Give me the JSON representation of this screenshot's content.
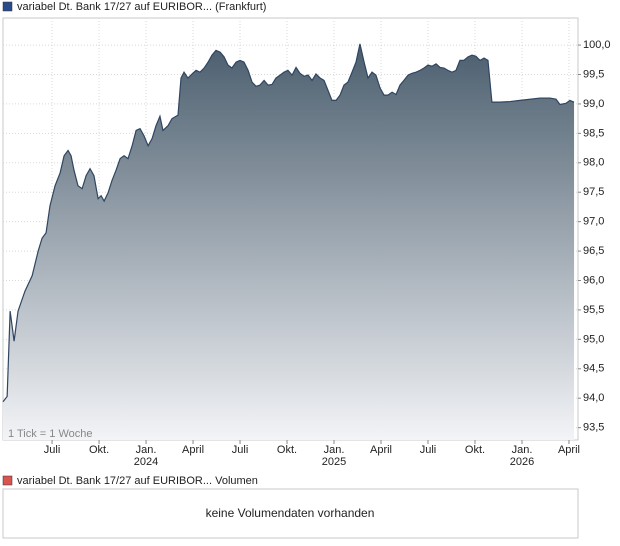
{
  "chart_data": {
    "type": "area",
    "annotation": "1 Tick = 1 Woche",
    "series": [
      {
        "name": "variabel Dt. Bank 17/27 auf EURIBOR... (Frankfurt)",
        "color": "#2b4a8a",
        "line_color": "#2f4560",
        "fill_top": "#4b5e6e",
        "fill_bottom": "#f3f4f7",
        "values": [
          93.94,
          94.03,
          95.48,
          94.97,
          95.48,
          95.82,
          96.08,
          96.5,
          96.72,
          96.81,
          97.27,
          97.61,
          97.83,
          98.12,
          98.21,
          98.12,
          97.87,
          97.61,
          97.56,
          97.78,
          97.9,
          97.78,
          97.39,
          97.44,
          97.35,
          97.49,
          97.7,
          97.87,
          98.07,
          98.12,
          98.07,
          98.29,
          98.55,
          98.58,
          98.46,
          98.29,
          98.41,
          98.63,
          98.79,
          98.55,
          98.63,
          98.75,
          98.81,
          99.44,
          99.54,
          99.44,
          99.51,
          99.57,
          99.54,
          99.61,
          99.71,
          99.83,
          99.91,
          99.88,
          99.8,
          99.66,
          99.61,
          99.71,
          99.74,
          99.71,
          99.57,
          99.37,
          99.3,
          99.32,
          99.4,
          99.32,
          99.33,
          99.44,
          99.49,
          99.54,
          99.57,
          99.49,
          99.62,
          99.52,
          99.47,
          99.49,
          99.4,
          99.51,
          99.44,
          99.4,
          99.23,
          99.06,
          99.06,
          99.15,
          99.32,
          99.37,
          99.54,
          99.71,
          100.02,
          99.71,
          99.44,
          99.54,
          99.49,
          99.27,
          99.15,
          99.15,
          99.2,
          99.16,
          99.32,
          99.4,
          99.49,
          99.52,
          99.54,
          99.57,
          99.61,
          99.66,
          99.64,
          99.68,
          99.62,
          99.61,
          99.57,
          99.54,
          99.57,
          99.74,
          99.74,
          99.8,
          99.83,
          99.81,
          99.74,
          99.78,
          99.74,
          99.03,
          99.03,
          99.03,
          99.04,
          99.06,
          99.08,
          99.1,
          99.1,
          99.08,
          98.99,
          99.01,
          99.06,
          99.03
        ]
      }
    ],
    "x": [
      2023.239,
      2023.261,
      2023.277,
      2023.298,
      2023.319,
      2023.356,
      2023.394,
      2023.426,
      2023.447,
      2023.468,
      2023.489,
      2023.516,
      2023.543,
      2023.564,
      2023.585,
      2023.601,
      2023.617,
      2023.638,
      2023.66,
      2023.681,
      2023.702,
      2023.723,
      2023.745,
      2023.761,
      2023.777,
      2023.798,
      2023.819,
      2023.84,
      2023.862,
      2023.883,
      2023.904,
      2023.926,
      2023.947,
      2023.968,
      2023.989,
      2024.011,
      2024.032,
      2024.053,
      2024.074,
      2024.09,
      2024.117,
      2024.138,
      2024.17,
      2024.186,
      2024.202,
      2024.223,
      2024.245,
      2024.266,
      2024.287,
      2024.309,
      2024.33,
      2024.351,
      2024.372,
      2024.394,
      2024.415,
      2024.436,
      2024.457,
      2024.479,
      2024.5,
      2024.521,
      2024.543,
      2024.564,
      2024.585,
      2024.606,
      2024.628,
      2024.649,
      2024.67,
      2024.691,
      2024.713,
      2024.734,
      2024.755,
      2024.777,
      2024.798,
      2024.819,
      2024.84,
      2024.862,
      2024.883,
      2024.904,
      2024.926,
      2024.947,
      2024.968,
      2024.989,
      2025.011,
      2025.032,
      2025.053,
      2025.074,
      2025.096,
      2025.117,
      2025.138,
      2025.16,
      2025.181,
      2025.202,
      2025.223,
      2025.245,
      2025.266,
      2025.287,
      2025.309,
      2025.33,
      2025.351,
      2025.372,
      2025.394,
      2025.415,
      2025.436,
      2025.457,
      2025.479,
      2025.5,
      2025.521,
      2025.543,
      2025.564,
      2025.585,
      2025.606,
      2025.628,
      2025.649,
      2025.67,
      2025.691,
      2025.713,
      2025.734,
      2025.755,
      2025.777,
      2025.798,
      2025.819,
      2025.84,
      2025.862,
      2025.883,
      2025.936,
      2025.989,
      2026.043,
      2026.096,
      2026.149,
      2026.181,
      2026.202,
      2026.234,
      2026.255,
      2026.277
    ],
    "xlim": [
      2023.239,
      2026.298
    ],
    "xticks": [
      {
        "value": 2023.5,
        "label": "Juli"
      },
      {
        "value": 2023.75,
        "label": "Okt."
      },
      {
        "value": 2024.0,
        "label": "Jan.",
        "year": "2024"
      },
      {
        "value": 2024.25,
        "label": "April"
      },
      {
        "value": 2024.5,
        "label": "Juli"
      },
      {
        "value": 2024.75,
        "label": "Okt."
      },
      {
        "value": 2025.0,
        "label": "Jan.",
        "year": "2025"
      },
      {
        "value": 2025.25,
        "label": "April"
      },
      {
        "value": 2025.5,
        "label": "Juli"
      },
      {
        "value": 2025.75,
        "label": "Okt."
      },
      {
        "value": 2026.0,
        "label": "Jan.",
        "year": "2026"
      },
      {
        "value": 2026.25,
        "label": "April"
      }
    ],
    "ylim": [
      93.29,
      100.46
    ],
    "yticks": [
      {
        "value": 93.5,
        "label": "93,5"
      },
      {
        "value": 94,
        "label": "94,0"
      },
      {
        "value": 94.5,
        "label": "94,5"
      },
      {
        "value": 95,
        "label": "95,0"
      },
      {
        "value": 95.5,
        "label": "95,5"
      },
      {
        "value": 96,
        "label": "96,0"
      },
      {
        "value": 96.5,
        "label": "96,5"
      },
      {
        "value": 97,
        "label": "97,0"
      },
      {
        "value": 97.5,
        "label": "97,5"
      },
      {
        "value": 98,
        "label": "98,0"
      },
      {
        "value": 98.5,
        "label": "98,5"
      },
      {
        "value": 99,
        "label": "99,0"
      },
      {
        "value": 99.5,
        "label": "99,5"
      },
      {
        "value": 100,
        "label": "100,0"
      }
    ],
    "grid": true
  },
  "volume_panel": {
    "legend": "variabel Dt. Bank 17/27 auf EURIBOR... Volumen",
    "legend_color": "#d9534f",
    "message": "keine Volumendaten vorhanden"
  }
}
